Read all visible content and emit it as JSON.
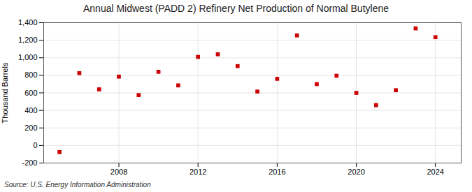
{
  "chart_data": {
    "type": "scatter",
    "title": "Annual Midwest (PADD 2) Refinery Net Production of Normal Butylene",
    "ylabel": "Thousand Barrels",
    "source": "Source: U.S. Energy Information Administration",
    "x": [
      2005,
      2006,
      2007,
      2008,
      2009,
      2010,
      2011,
      2012,
      2013,
      2014,
      2015,
      2016,
      2017,
      2018,
      2019,
      2020,
      2021,
      2022,
      2023,
      2024
    ],
    "values": [
      -75,
      825,
      640,
      785,
      575,
      840,
      685,
      1010,
      1040,
      905,
      615,
      760,
      1255,
      700,
      795,
      600,
      460,
      630,
      1335,
      1235
    ],
    "color": "#cc0000",
    "marker": "square",
    "xlim": [
      2004.2,
      2025.3
    ],
    "xticks": [
      2008,
      2012,
      2016,
      2020,
      2024
    ],
    "ylim": [
      -200,
      1400
    ],
    "yticks": [
      -200,
      0,
      200,
      400,
      600,
      800,
      {
        "value": 1000,
        "label": "1,000"
      },
      {
        "value": 1200,
        "label": "1,200"
      },
      {
        "value": 1400,
        "label": "1,400"
      }
    ],
    "grid": true
  }
}
